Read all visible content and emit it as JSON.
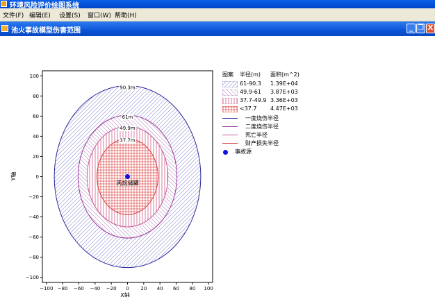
{
  "app": {
    "title": "环境风险评价绘图系统"
  },
  "menu": [
    {
      "label": "文件(F)"
    },
    {
      "label": "编辑(E)"
    },
    {
      "label": "设置(S)"
    },
    {
      "label": "窗口(W)"
    },
    {
      "label": "帮助(H)"
    }
  ],
  "child_window": {
    "title": "池火事故模型伤害范围"
  },
  "window_buttons": {
    "minimize": "_",
    "restore": "❐",
    "close": "X"
  },
  "legend": {
    "headers": {
      "pattern": "图案",
      "radius": "半径(m)",
      "area": "面积(m^2)"
    },
    "rows": [
      {
        "radius": "61-90.3",
        "area": "1.39E+04",
        "color": "#5a5ab8"
      },
      {
        "radius": "49.9-61",
        "area": "3.87E+03",
        "color": "#9a5aa8"
      },
      {
        "radius": "37.7-49.9",
        "area": "3.36E+03",
        "color": "#d05a8a"
      },
      {
        "radius": "<37.7",
        "area": "4.47E+03",
        "color": "#e04848"
      }
    ],
    "lines": [
      {
        "label": "一度烧伤半径",
        "color": "#2a2a9a"
      },
      {
        "label": "二度烧伤半径",
        "color": "#9a3a9a"
      },
      {
        "label": "死亡半径",
        "color": "#c85a9a"
      },
      {
        "label": "财产损失半径",
        "color": "#d84040"
      }
    ],
    "source": {
      "label": "事故源",
      "color": "#1010e0"
    }
  },
  "chart_data": {
    "type": "scatter",
    "xlabel": "X轴",
    "ylabel": "Y轴",
    "xlim": [
      -105,
      105
    ],
    "ylim": [
      -105,
      105
    ],
    "xticks": [
      -100,
      -80,
      -60,
      -40,
      -20,
      0,
      20,
      40,
      60,
      80,
      100
    ],
    "yticks": [
      -100,
      -80,
      -60,
      -40,
      -20,
      0,
      20,
      40,
      60,
      80,
      100
    ],
    "grid": false,
    "circles": [
      {
        "name": "一度烧伤半径",
        "radius": 90.3,
        "label": "90.3m",
        "color": "#2a2a9a"
      },
      {
        "name": "二度烧伤半径",
        "radius": 61,
        "label": "61m",
        "color": "#9a3a9a"
      },
      {
        "name": "死亡半径",
        "radius": 49.9,
        "label": "49.9m",
        "color": "#c85a9a"
      },
      {
        "name": "财产损失半径",
        "radius": 37.7,
        "label": "37.7m",
        "color": "#d84040"
      }
    ],
    "source_point": {
      "x": 0,
      "y": 0,
      "label": "丙烷储罐"
    }
  }
}
